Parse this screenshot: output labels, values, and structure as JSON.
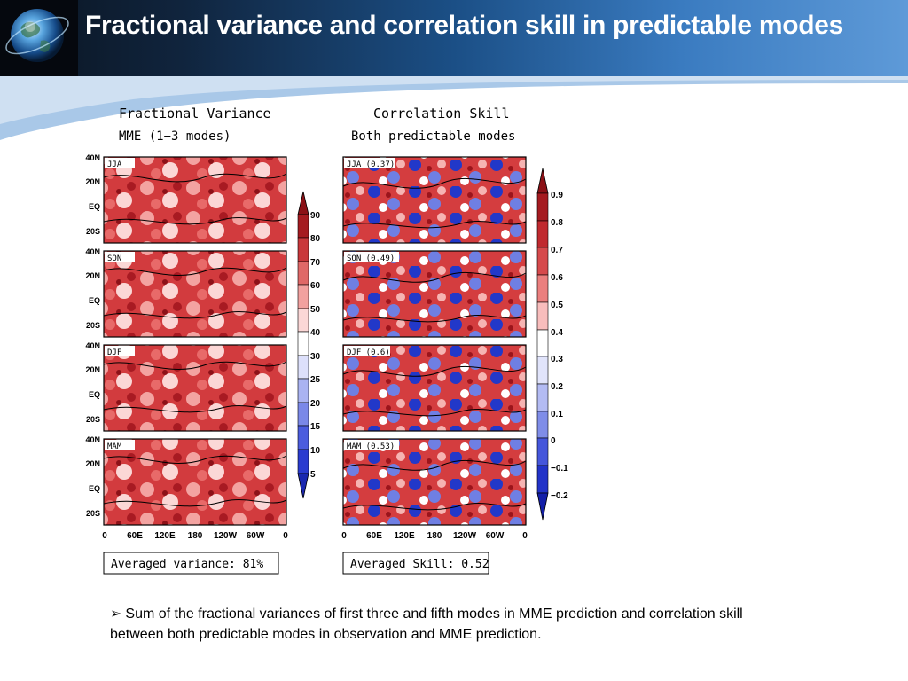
{
  "slide": {
    "title": "Fractional variance and correlation skill in predictable modes",
    "accent_colors": {
      "header_dark": "#0a1420",
      "header_light": "#5e9ad8",
      "red": "#c0262a",
      "blue": "#1f2fc8"
    }
  },
  "figure": {
    "left": {
      "title": "Fractional Variance",
      "subtitle": "MME (1−3 modes)",
      "panels": [
        "JJA",
        "SON",
        "DJF",
        "MAM"
      ],
      "colorbar_labels": [
        "90",
        "80",
        "70",
        "60",
        "50",
        "40",
        "30",
        "25",
        "20",
        "15",
        "10",
        "5"
      ],
      "summary": "Averaged variance: 81%"
    },
    "right": {
      "title": "Correlation Skill",
      "subtitle": "Both predictable modes",
      "panels": [
        "JJA (0.37)",
        "SON (0.49)",
        "DJF (0.6)",
        "MAM (0.53)"
      ],
      "colorbar_labels": [
        "0.9",
        "0.8",
        "0.7",
        "0.6",
        "0.5",
        "0.4",
        "0.3",
        "0.2",
        "0.1",
        "0",
        "−0.1",
        "−0.2"
      ],
      "summary": "Averaged Skill: 0.52"
    },
    "lat_labels": [
      "40N",
      "20N",
      "EQ",
      "20S"
    ],
    "lon_labels": [
      "0",
      "60E",
      "120E",
      "180",
      "120W",
      "60W",
      "0"
    ]
  },
  "caption": {
    "bullet": "➢",
    "text": "Sum of the fractional variances of first three and fifth modes in MME prediction and correlation skill between both predictable modes in observation and MME prediction."
  }
}
